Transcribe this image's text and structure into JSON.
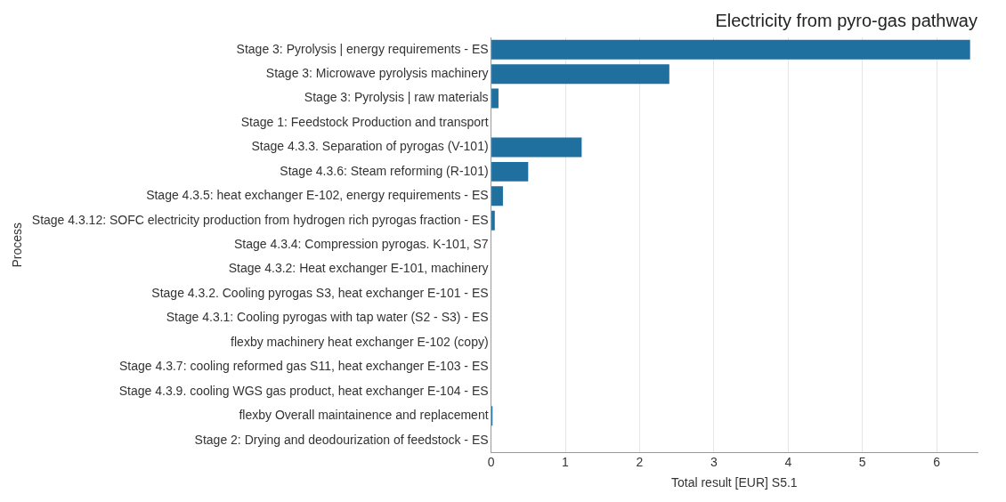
{
  "chart_data": {
    "type": "bar",
    "orientation": "horizontal",
    "title": "Electricity from pyro-gas pathway",
    "xlabel": "Total result [EUR] S5.1",
    "ylabel": "Process",
    "categories": [
      "Stage 3: Pyrolysis | energy requirements - ES",
      "Stage 3: Microwave pyrolysis machinery",
      "Stage 3: Pyrolysis | raw materials",
      "Stage 1: Feedstock Production and transport",
      "Stage 4.3.3. Separation of pyrogas (V-101)",
      "Stage 4.3.6: Steam reforming (R-101)",
      "Stage 4.3.5: heat exchanger E-102, energy requirements - ES",
      "Stage 4.3.12: SOFC electricity production from hydrogen rich pyrogas fraction - ES",
      "Stage 4.3.4: Compression pyrogas. K-101, S7",
      "Stage 4.3.2: Heat exchanger E-101, machinery",
      "Stage 4.3.2. Cooling pyrogas S3, heat exchanger E-101 - ES",
      "Stage 4.3.1: Cooling pyrogas with tap water (S2 - S3) - ES",
      "flexby machinery heat exchanger E-102 (copy)",
      "Stage 4.3.7: cooling reformed gas S11, heat exchanger E-103 - ES",
      "Stage 4.3.9. cooling WGS gas product, heat exchanger E-104 - ES",
      "flexby Overall maintainence and replacement",
      "Stage 2: Drying and deodourization of feedstock - ES"
    ],
    "values": [
      6.45,
      2.4,
      0.1,
      0,
      1.22,
      0.5,
      0.16,
      0.05,
      0,
      0,
      0,
      0,
      0,
      0,
      0,
      0.02,
      0
    ],
    "color": "#1f6f9f",
    "xlim": [
      0,
      6.55
    ],
    "xticks": [
      0,
      1,
      2,
      3,
      4,
      5,
      6
    ],
    "grid": "x",
    "legend": false
  }
}
